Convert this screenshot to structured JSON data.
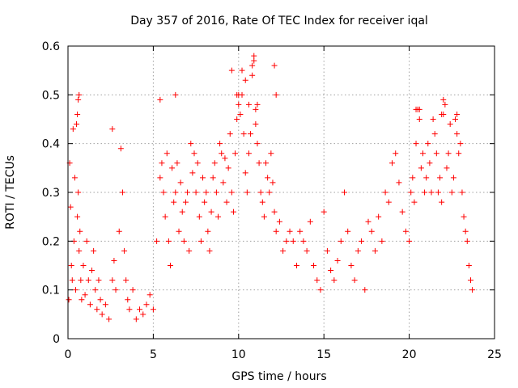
{
  "chart_data": {
    "type": "scatter",
    "title": "Day 357 of 2016, Rate Of TEC Index for receiver iqal",
    "xlabel": "GPS time / hours",
    "ylabel": "ROTI / TECUs",
    "xlim": [
      0,
      25
    ],
    "ylim": [
      0,
      0.6
    ],
    "xticks": [
      0,
      5,
      10,
      15,
      20,
      25
    ],
    "xtick_labels": [
      "0",
      "5",
      "10",
      "15",
      "20",
      "25"
    ],
    "yticks": [
      0,
      0.1,
      0.2,
      0.3,
      0.4,
      0.5,
      0.6
    ],
    "ytick_labels": [
      "0",
      "0.1",
      "0.2",
      "0.3",
      "0.4",
      "0.5",
      "0.6"
    ],
    "grid": true,
    "marker": "plus",
    "series": [
      {
        "name": "ROTI",
        "color": "#ff0000",
        "x": [
          0.05,
          0.1,
          0.15,
          0.2,
          0.25,
          0.3,
          0.35,
          0.4,
          0.45,
          0.5,
          0.55,
          0.6,
          0.65,
          0.7,
          0.75,
          0.8,
          0.9,
          1.0,
          1.1,
          1.2,
          1.3,
          1.4,
          1.5,
          1.6,
          1.7,
          1.8,
          1.9,
          2.0,
          2.2,
          2.4,
          2.6,
          2.7,
          2.8,
          3.0,
          3.1,
          3.2,
          3.3,
          3.4,
          3.5,
          3.6,
          3.8,
          4.0,
          4.2,
          4.4,
          4.6,
          4.8,
          5.0,
          5.2,
          5.4,
          5.5,
          5.6,
          5.7,
          5.8,
          5.9,
          6.0,
          6.1,
          6.2,
          6.3,
          6.4,
          6.5,
          6.6,
          6.7,
          6.8,
          6.9,
          7.0,
          7.1,
          7.2,
          7.3,
          7.4,
          7.5,
          7.6,
          7.7,
          7.8,
          7.9,
          8.0,
          8.1,
          8.2,
          8.3,
          8.4,
          8.5,
          8.6,
          8.7,
          8.8,
          8.9,
          9.0,
          9.1,
          9.2,
          9.3,
          9.4,
          9.5,
          9.6,
          9.7,
          9.8,
          9.9,
          10.0,
          10.1,
          10.2,
          10.3,
          10.4,
          10.5,
          10.6,
          10.7,
          10.8,
          10.9,
          11.0,
          11.1,
          11.2,
          11.3,
          11.4,
          11.5,
          11.6,
          11.7,
          11.8,
          11.9,
          12.0,
          12.1,
          12.2,
          12.4,
          12.6,
          12.8,
          13.0,
          13.2,
          13.4,
          13.6,
          13.8,
          14.0,
          14.2,
          14.4,
          14.6,
          14.8,
          15.0,
          15.2,
          15.4,
          15.6,
          15.8,
          16.0,
          16.2,
          16.4,
          16.6,
          16.8,
          17.0,
          17.2,
          17.4,
          17.6,
          17.8,
          18.0,
          18.2,
          18.4,
          18.6,
          18.8,
          19.0,
          19.2,
          19.4,
          19.6,
          19.8,
          20.0,
          20.1,
          20.2,
          20.3,
          20.4,
          20.5,
          20.6,
          20.7,
          20.8,
          20.9,
          21.0,
          21.1,
          21.2,
          21.3,
          21.4,
          21.5,
          21.6,
          21.7,
          21.8,
          21.9,
          22.0,
          22.1,
          22.2,
          22.3,
          22.4,
          22.5,
          22.6,
          22.7,
          22.8,
          22.9,
          23.0,
          23.1,
          23.2,
          23.3,
          23.4,
          23.5,
          23.6,
          23.7,
          0.55,
          0.6,
          0.65,
          2.6,
          5.4,
          6.3,
          10.0,
          10.2,
          10.6,
          10.8,
          10.9,
          11.0,
          11.1,
          12.1,
          12.2,
          21.9,
          22.0,
          20.4,
          20.6,
          22.8,
          9.6,
          9.9,
          10.4
        ],
        "y": [
          0.08,
          0.36,
          0.27,
          0.15,
          0.12,
          0.43,
          0.2,
          0.33,
          0.1,
          0.44,
          0.25,
          0.3,
          0.18,
          0.22,
          0.12,
          0.08,
          0.15,
          0.09,
          0.2,
          0.12,
          0.07,
          0.14,
          0.18,
          0.1,
          0.06,
          0.12,
          0.08,
          0.05,
          0.07,
          0.04,
          0.12,
          0.16,
          0.1,
          0.22,
          0.39,
          0.3,
          0.18,
          0.12,
          0.08,
          0.06,
          0.1,
          0.04,
          0.06,
          0.05,
          0.07,
          0.09,
          0.06,
          0.2,
          0.33,
          0.36,
          0.3,
          0.25,
          0.38,
          0.2,
          0.15,
          0.35,
          0.28,
          0.3,
          0.36,
          0.22,
          0.32,
          0.26,
          0.2,
          0.28,
          0.3,
          0.18,
          0.4,
          0.34,
          0.38,
          0.3,
          0.36,
          0.25,
          0.2,
          0.33,
          0.28,
          0.3,
          0.22,
          0.18,
          0.26,
          0.33,
          0.36,
          0.3,
          0.25,
          0.4,
          0.38,
          0.32,
          0.37,
          0.28,
          0.35,
          0.42,
          0.3,
          0.26,
          0.38,
          0.45,
          0.48,
          0.46,
          0.5,
          0.42,
          0.34,
          0.3,
          0.38,
          0.42,
          0.54,
          0.57,
          0.44,
          0.4,
          0.36,
          0.3,
          0.28,
          0.25,
          0.36,
          0.33,
          0.3,
          0.38,
          0.32,
          0.26,
          0.22,
          0.24,
          0.18,
          0.2,
          0.22,
          0.2,
          0.15,
          0.22,
          0.2,
          0.18,
          0.24,
          0.15,
          0.12,
          0.1,
          0.26,
          0.18,
          0.14,
          0.12,
          0.16,
          0.2,
          0.3,
          0.22,
          0.15,
          0.12,
          0.18,
          0.2,
          0.1,
          0.24,
          0.22,
          0.18,
          0.25,
          0.2,
          0.3,
          0.28,
          0.36,
          0.38,
          0.32,
          0.26,
          0.22,
          0.2,
          0.3,
          0.33,
          0.28,
          0.4,
          0.47,
          0.45,
          0.35,
          0.38,
          0.3,
          0.33,
          0.4,
          0.36,
          0.3,
          0.45,
          0.42,
          0.38,
          0.3,
          0.33,
          0.28,
          0.46,
          0.48,
          0.35,
          0.38,
          0.44,
          0.3,
          0.33,
          0.45,
          0.42,
          0.38,
          0.4,
          0.3,
          0.25,
          0.22,
          0.2,
          0.15,
          0.12,
          0.1,
          0.46,
          0.49,
          0.5,
          0.43,
          0.49,
          0.5,
          0.5,
          0.55,
          0.48,
          0.56,
          0.58,
          0.47,
          0.48,
          0.56,
          0.5,
          0.46,
          0.49,
          0.47,
          0.47,
          0.46,
          0.55,
          0.5,
          0.53
        ]
      }
    ]
  }
}
